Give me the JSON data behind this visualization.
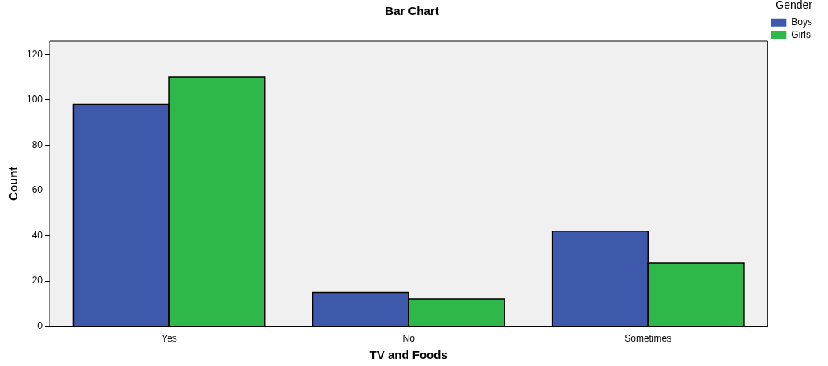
{
  "chart_data": {
    "type": "bar",
    "title": "Bar Chart",
    "xlabel": "TV and Foods",
    "ylabel": "Count",
    "legend_title": "Gender",
    "categories": [
      "Yes",
      "No",
      "Sometimes"
    ],
    "series": [
      {
        "name": "Boys",
        "color": "#3e58ac",
        "values": [
          98,
          15,
          42
        ]
      },
      {
        "name": "Girls",
        "color": "#2eb84a",
        "values": [
          110,
          12,
          28
        ]
      }
    ],
    "ylim": [
      0,
      126
    ],
    "yticks": [
      0,
      20,
      40,
      60,
      80,
      100,
      120
    ],
    "grid": false,
    "legend": "top right"
  }
}
